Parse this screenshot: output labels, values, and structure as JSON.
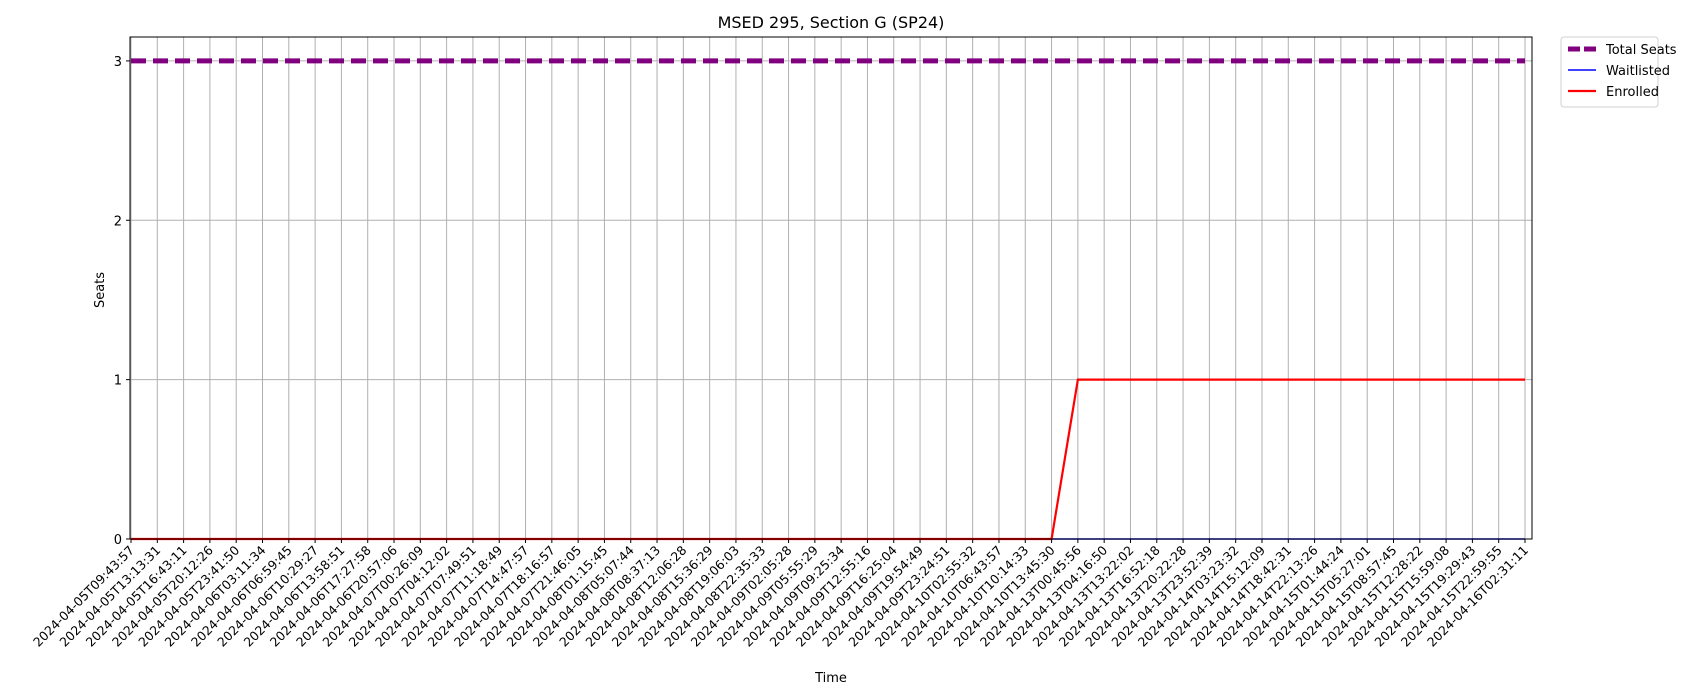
{
  "chart_data": {
    "type": "line",
    "title": "MSED 295, Section G (SP24)",
    "xlabel": "Time",
    "ylabel": "Seats",
    "ylim": [
      0,
      3.15
    ],
    "yticks": [
      0,
      1,
      2,
      3
    ],
    "grid": true,
    "legend_position": "outside-top-right",
    "x": [
      "2024-04-05T09:43:57",
      "2024-04-05T13:13:31",
      "2024-04-05T16:43:11",
      "2024-04-05T20:12:26",
      "2024-04-05T23:41:50",
      "2024-04-06T03:11:34",
      "2024-04-06T06:59:45",
      "2024-04-06T10:29:27",
      "2024-04-06T13:58:51",
      "2024-04-06T17:27:58",
      "2024-04-06T20:57:06",
      "2024-04-07T00:26:09",
      "2024-04-07T04:12:02",
      "2024-04-07T07:49:51",
      "2024-04-07T11:18:49",
      "2024-04-07T14:47:57",
      "2024-04-07T18:16:57",
      "2024-04-07T21:46:05",
      "2024-04-08T01:15:45",
      "2024-04-08T05:07:44",
      "2024-04-08T08:37:13",
      "2024-04-08T12:06:28",
      "2024-04-08T15:36:29",
      "2024-04-08T19:06:03",
      "2024-04-08T22:35:33",
      "2024-04-09T02:05:28",
      "2024-04-09T05:55:29",
      "2024-04-09T09:25:34",
      "2024-04-09T12:55:16",
      "2024-04-09T16:25:04",
      "2024-04-09T19:54:49",
      "2024-04-09T23:24:51",
      "2024-04-10T02:55:32",
      "2024-04-10T06:43:57",
      "2024-04-10T10:14:33",
      "2024-04-10T13:45:30",
      "2024-04-13T00:45:56",
      "2024-04-13T04:16:50",
      "2024-04-13T13:22:02",
      "2024-04-13T16:52:18",
      "2024-04-13T20:22:28",
      "2024-04-13T23:52:39",
      "2024-04-14T03:23:32",
      "2024-04-14T15:12:09",
      "2024-04-14T18:42:31",
      "2024-04-14T22:13:26",
      "2024-04-15T01:44:24",
      "2024-04-15T05:27:01",
      "2024-04-15T08:57:45",
      "2024-04-15T12:28:22",
      "2024-04-15T15:59:08",
      "2024-04-15T19:29:43",
      "2024-04-15T22:59:55",
      "2024-04-16T02:31:11"
    ],
    "series": [
      {
        "name": "Total Seats",
        "color": "#800080",
        "style": "dashed-thick",
        "values": [
          3,
          3,
          3,
          3,
          3,
          3,
          3,
          3,
          3,
          3,
          3,
          3,
          3,
          3,
          3,
          3,
          3,
          3,
          3,
          3,
          3,
          3,
          3,
          3,
          3,
          3,
          3,
          3,
          3,
          3,
          3,
          3,
          3,
          3,
          3,
          3,
          3,
          3,
          3,
          3,
          3,
          3,
          3,
          3,
          3,
          3,
          3,
          3,
          3,
          3,
          3,
          3,
          3,
          3
        ]
      },
      {
        "name": "Waitlisted",
        "color": "#0000ff",
        "style": "solid-thin",
        "values": [
          0,
          0,
          0,
          0,
          0,
          0,
          0,
          0,
          0,
          0,
          0,
          0,
          0,
          0,
          0,
          0,
          0,
          0,
          0,
          0,
          0,
          0,
          0,
          0,
          0,
          0,
          0,
          0,
          0,
          0,
          0,
          0,
          0,
          0,
          0,
          0,
          0,
          0,
          0,
          0,
          0,
          0,
          0,
          0,
          0,
          0,
          0,
          0,
          0,
          0,
          0,
          0,
          0,
          0
        ]
      },
      {
        "name": "Enrolled",
        "color": "#ff0000",
        "style": "solid",
        "values": [
          0,
          0,
          0,
          0,
          0,
          0,
          0,
          0,
          0,
          0,
          0,
          0,
          0,
          0,
          0,
          0,
          0,
          0,
          0,
          0,
          0,
          0,
          0,
          0,
          0,
          0,
          0,
          0,
          0,
          0,
          0,
          0,
          0,
          0,
          0,
          0,
          1,
          1,
          1,
          1,
          1,
          1,
          1,
          1,
          1,
          1,
          1,
          1,
          1,
          1,
          1,
          1,
          1,
          1
        ]
      }
    ]
  }
}
